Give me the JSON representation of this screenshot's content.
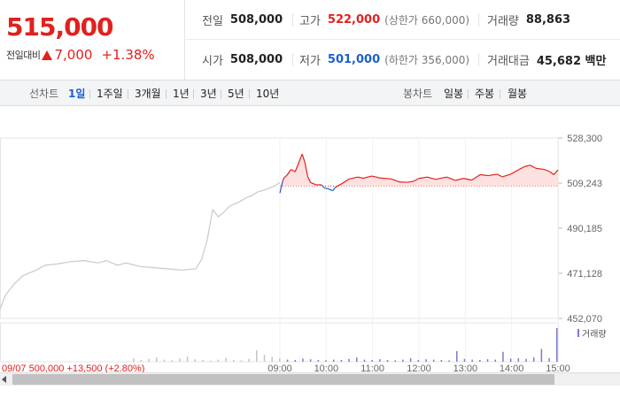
{
  "quote": {
    "current_price": "515,000",
    "change_label": "전일대비",
    "change_amount": "7,000",
    "change_rate": "+1.38%"
  },
  "info": {
    "prev_close_label": "전일",
    "prev_close": "508,000",
    "high_label": "고가",
    "high": "522,000",
    "upper_limit": "(상한가 660,000)",
    "volume_label": "거래량",
    "volume": "88,863",
    "open_label": "시가",
    "open": "508,000",
    "low_label": "저가",
    "low": "501,000",
    "lower_limit": "(하한가 356,000)",
    "trade_value_label": "거래대금",
    "trade_value": "45,682 백만"
  },
  "tabs": {
    "line_title": "선차트",
    "line_tabs": [
      "1일",
      "1주일",
      "3개월",
      "1년",
      "3년",
      "5년",
      "10년"
    ],
    "active_line_tab": "1일",
    "candle_title": "봉차트",
    "candle_tabs": [
      "일봉",
      "주봉",
      "월봉"
    ]
  },
  "chart_data": {
    "type": "line",
    "y_ticks": [
      "528,300",
      "509,243",
      "490,185",
      "471,128",
      "452,070"
    ],
    "ylim": [
      452070,
      528300
    ],
    "reference_price": 508000,
    "volume_label": "거래량",
    "time_labels": [
      "09:00",
      "10:00",
      "11:00",
      "12:00",
      "13:00",
      "14:00",
      "15:00"
    ],
    "partial_bottom_text": "09/07  500,000  +13,500 (+2.80%)",
    "colors": {
      "up": "#e1211e",
      "down": "#1b5fd2",
      "prev_day": "#c9c9c9",
      "up_fill": "#fde1e1"
    },
    "prev_day": {
      "x": [
        0,
        0.02,
        0.05,
        0.08,
        0.1,
        0.13,
        0.16,
        0.2,
        0.25,
        0.3,
        0.35,
        0.38,
        0.42,
        0.45,
        0.5,
        0.55,
        0.6,
        0.65,
        0.7,
        0.72,
        0.74,
        0.76,
        0.78,
        0.8,
        0.82,
        0.85,
        0.88,
        0.9,
        0.92,
        0.95,
        0.98,
        1.0
      ],
      "y": [
        456000,
        462000,
        466500,
        470000,
        471000,
        472500,
        474500,
        475000,
        476000,
        476500,
        475500,
        476500,
        474500,
        475500,
        474000,
        473500,
        473000,
        472500,
        473000,
        477000,
        485000,
        498000,
        495000,
        497000,
        499500,
        501000,
        503000,
        504000,
        505500,
        506500,
        508000,
        509500
      ]
    },
    "today": {
      "x": [
        0,
        0.01,
        0.015,
        0.025,
        0.04,
        0.055,
        0.07,
        0.08,
        0.09,
        0.1,
        0.11,
        0.13,
        0.15,
        0.16,
        0.175,
        0.19,
        0.2,
        0.22,
        0.25,
        0.28,
        0.3,
        0.33,
        0.36,
        0.4,
        0.43,
        0.46,
        0.48,
        0.5,
        0.53,
        0.56,
        0.6,
        0.63,
        0.66,
        0.69,
        0.72,
        0.75,
        0.78,
        0.8,
        0.83,
        0.86,
        0.88,
        0.9,
        0.92,
        0.95,
        0.97,
        0.985,
        1.0
      ],
      "y": [
        505000,
        510000,
        511500,
        512500,
        515000,
        514000,
        518500,
        521500,
        518000,
        512000,
        509500,
        508500,
        508500,
        507200,
        506800,
        506000,
        507500,
        508800,
        511000,
        511800,
        511300,
        512200,
        511400,
        511000,
        509700,
        509600,
        510000,
        511200,
        511800,
        510800,
        511800,
        510400,
        511200,
        510500,
        512800,
        512400,
        513000,
        511900,
        513000,
        515000,
        516200,
        516800,
        515500,
        515000,
        514100,
        512800,
        514800
      ]
    },
    "volume_bars": [
      0.1,
      0.05,
      0.08,
      0.12,
      0.06,
      0.04,
      0.09,
      0.15,
      0.07,
      0.05,
      0.03,
      0.06,
      0.11,
      0.05,
      0.04,
      0.08,
      0.32,
      0.2,
      0.14,
      0.1,
      0.06,
      0.05,
      0.09,
      0.07,
      0.05,
      0.04,
      0.06,
      0.05,
      0.08,
      0.12,
      0.06,
      0.05,
      0.07,
      0.05,
      0.04,
      0.06,
      0.1,
      0.05,
      0.07,
      0.06,
      0.05,
      0.04,
      0.3,
      0.08,
      0.06,
      0.05,
      0.07,
      0.06,
      0.28,
      0.09,
      0.1,
      0.08,
      0.12,
      0.36,
      0.1,
      0.95
    ]
  }
}
